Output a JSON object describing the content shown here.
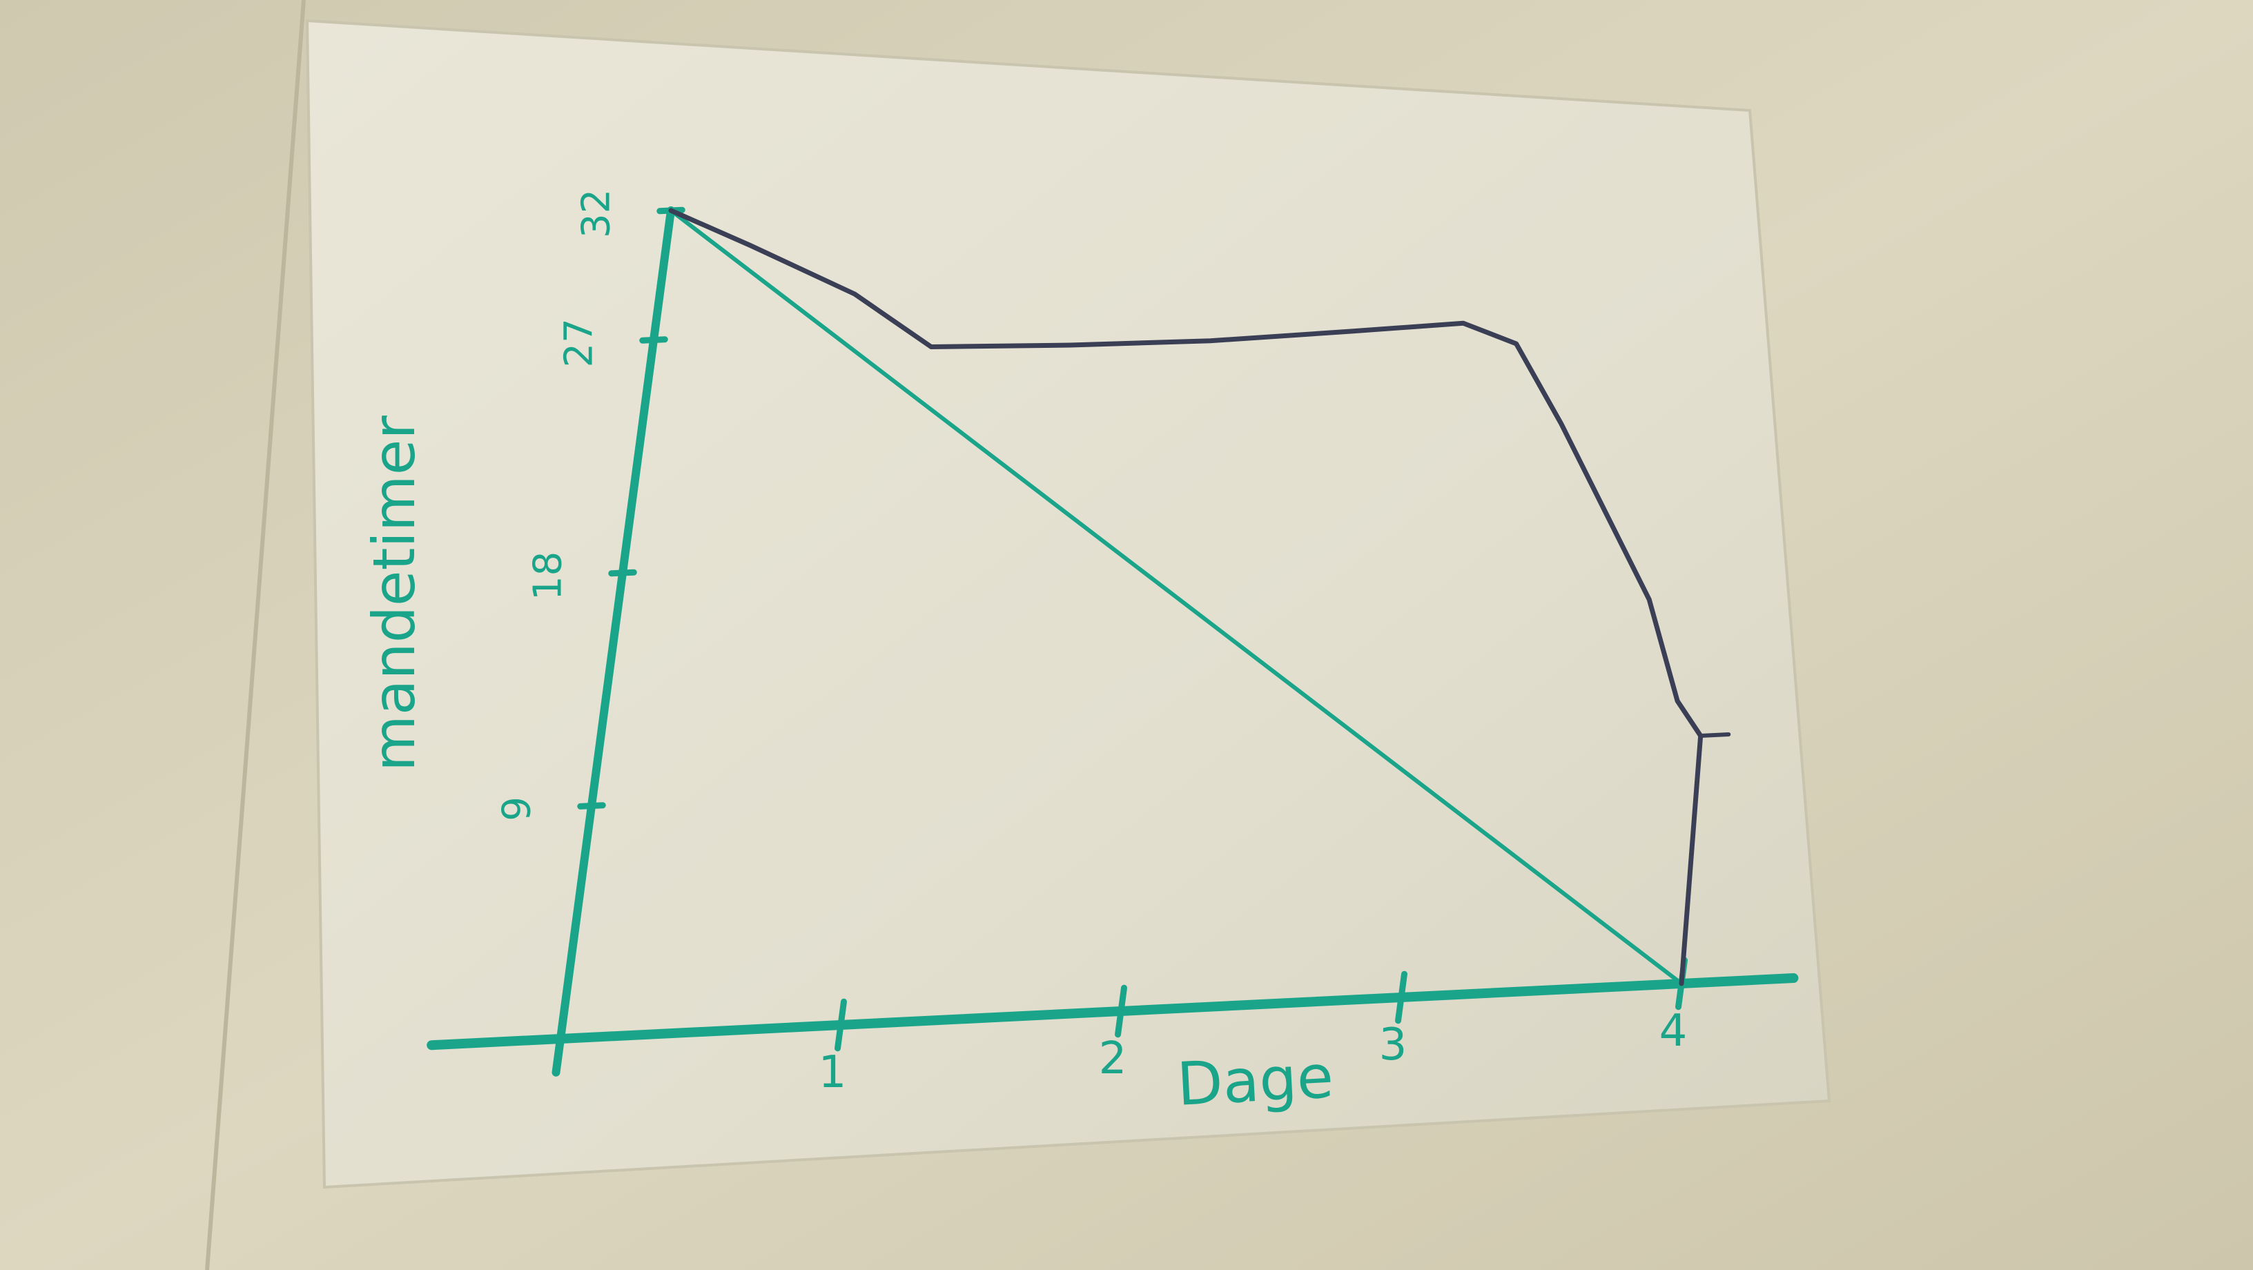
{
  "chart_data": {
    "type": "line",
    "title": "",
    "xlabel": "Dage",
    "ylabel": "mandetimer",
    "xlim": [
      0,
      4
    ],
    "ylim": [
      0,
      32
    ],
    "x_ticks": [
      "1",
      "2",
      "3",
      "4"
    ],
    "y_ticks": [
      "9",
      "18",
      "27",
      "32"
    ],
    "grid": false,
    "legend": "none",
    "colors": {
      "axes": "#1aa58a",
      "ideal_line": "#1aa58a",
      "actual_line": "#3a3f55"
    },
    "series": [
      {
        "x": [
          0,
          4
        ],
        "y": [
          32,
          0
        ]
      },
      {
        "x": [
          0,
          0.3,
          0.7,
          1.0,
          1.5,
          2.0,
          2.5,
          2.9,
          3.1,
          3.3,
          3.5,
          3.7,
          3.85,
          3.95,
          4.0
        ],
        "y": [
          32,
          30.5,
          28.4,
          26.2,
          26.0,
          25.9,
          26.0,
          26.1,
          25.2,
          22.0,
          18.5,
          15.0,
          11.0,
          9.6,
          0
        ]
      }
    ]
  }
}
